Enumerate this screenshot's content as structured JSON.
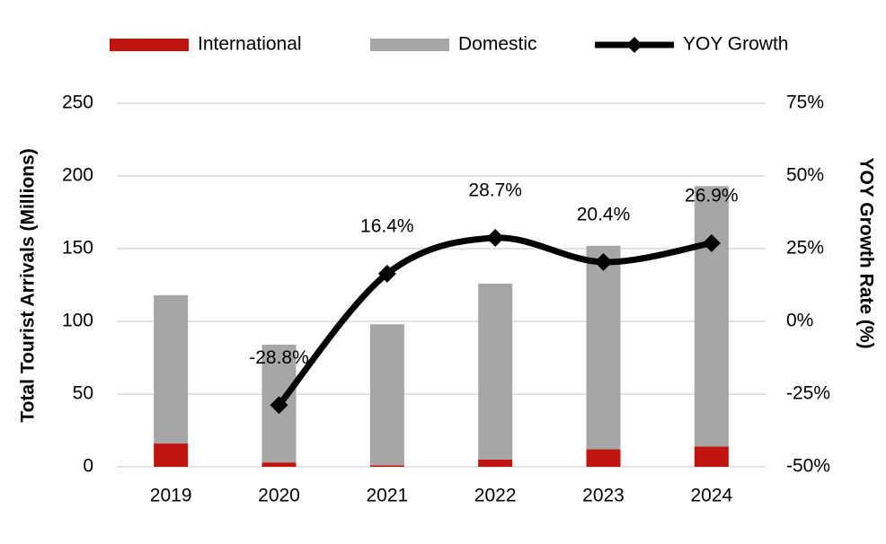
{
  "chart_data": {
    "type": "bar",
    "categories": [
      "2019",
      "2020",
      "2021",
      "2022",
      "2023",
      "2024"
    ],
    "y_label": "Total Tourist Arrivals (Millions)",
    "y2_label": "YOY Growth Rate (%)",
    "ylim": [
      0,
      250
    ],
    "yticks": [
      0,
      50,
      100,
      150,
      200,
      250
    ],
    "y2lim": [
      -50,
      75
    ],
    "y2ticks": [
      {
        "value": -50,
        "label": "-50%"
      },
      {
        "value": -25,
        "label": "-25%"
      },
      {
        "value": 0,
        "label": "0%"
      },
      {
        "value": 25,
        "label": "25%"
      },
      {
        "value": 50,
        "label": "50%"
      },
      {
        "value": 75,
        "label": "75%"
      }
    ],
    "grid": true,
    "legend": "top",
    "series": [
      {
        "name": "International",
        "type": "bar",
        "color": "#c0140f",
        "values": [
          16,
          3,
          1,
          5,
          12,
          14
        ]
      },
      {
        "name": "Domestic",
        "type": "bar",
        "color": "#a6a6a6",
        "values": [
          102,
          81,
          97,
          121,
          140,
          179
        ]
      },
      {
        "name": "YOY Growth",
        "type": "line",
        "axis": "y2",
        "color": "#000000",
        "values": [
          null,
          -28.8,
          16.4,
          28.7,
          20.4,
          26.9
        ],
        "value_labels": [
          null,
          "-28.8%",
          "16.4%",
          "28.7%",
          "20.4%",
          "26.9%"
        ]
      }
    ]
  }
}
